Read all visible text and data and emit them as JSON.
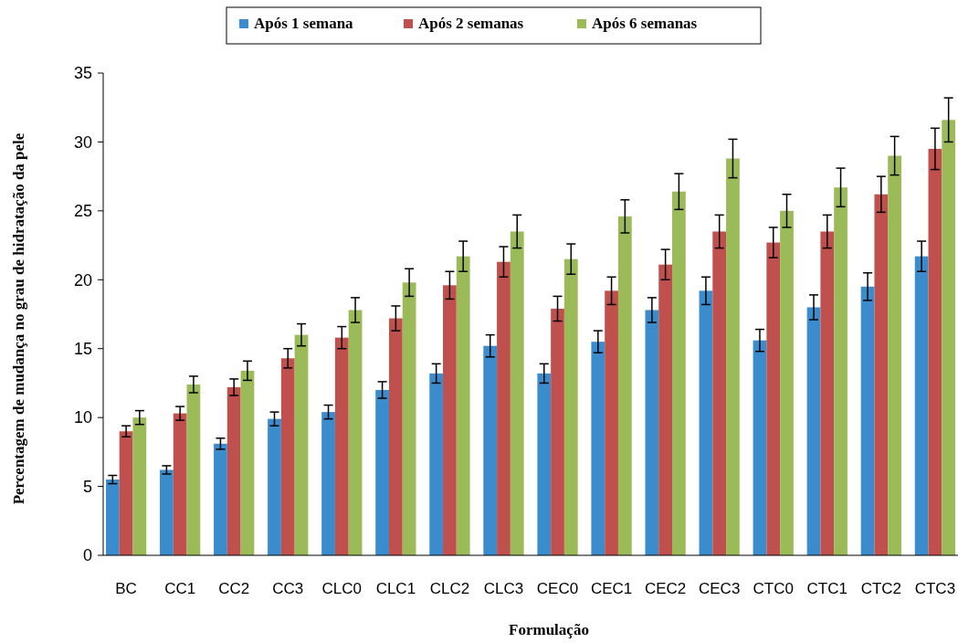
{
  "chart_data": {
    "type": "bar",
    "xlabel": "Formulação",
    "ylabel": "Percentagem de mudança no grau de hidratação da pele",
    "categories": [
      "BC",
      "CC1",
      "CC2",
      "CC3",
      "CLC0",
      "CLC1",
      "CLC2",
      "CLC3",
      "CEC0",
      "CEC1",
      "CEC2",
      "CEC3",
      "CTC0",
      "CTC1",
      "CTC2",
      "CTC3"
    ],
    "series": [
      {
        "name": "Após 1 semana",
        "color": "#3a8ccc",
        "values": [
          5.5,
          6.2,
          8.1,
          9.9,
          10.4,
          12.0,
          13.2,
          15.2,
          13.2,
          15.5,
          17.8,
          19.2,
          15.6,
          18.0,
          19.5,
          21.7
        ],
        "errors": [
          0.3,
          0.3,
          0.4,
          0.5,
          0.5,
          0.6,
          0.7,
          0.8,
          0.7,
          0.8,
          0.9,
          1.0,
          0.8,
          0.9,
          1.0,
          1.1
        ]
      },
      {
        "name": "Após 2 semanas",
        "color": "#c0504d",
        "values": [
          9.0,
          10.3,
          12.2,
          14.3,
          15.8,
          17.2,
          19.6,
          21.3,
          17.9,
          19.2,
          21.1,
          23.5,
          22.7,
          23.5,
          26.2,
          29.5
        ],
        "errors": [
          0.4,
          0.5,
          0.6,
          0.7,
          0.8,
          0.9,
          1.0,
          1.1,
          0.9,
          1.0,
          1.1,
          1.2,
          1.1,
          1.2,
          1.3,
          1.5
        ]
      },
      {
        "name": "Após 6 semanas",
        "color": "#9bbb59",
        "values": [
          10.0,
          12.4,
          13.4,
          16.0,
          17.8,
          19.8,
          21.7,
          23.5,
          21.5,
          24.6,
          26.4,
          28.8,
          25.0,
          26.7,
          29.0,
          31.6
        ],
        "errors": [
          0.5,
          0.6,
          0.7,
          0.8,
          0.9,
          1.0,
          1.1,
          1.2,
          1.1,
          1.2,
          1.3,
          1.4,
          1.2,
          1.4,
          1.4,
          1.6
        ]
      }
    ],
    "ylim": [
      0,
      35
    ],
    "yticks": [
      0,
      5,
      10,
      15,
      20,
      25,
      30,
      35
    ],
    "grid": false,
    "legend": "top"
  }
}
